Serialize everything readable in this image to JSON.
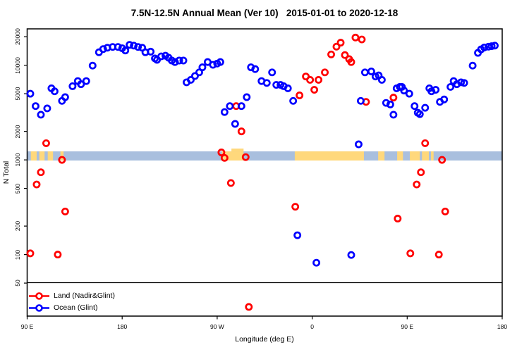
{
  "title": "7.5N-12.5N Annual Mean (Ver 10)   2015-01-01 to 2020-12-18",
  "legend": {
    "items": [
      {
        "label": "Land (Nadir&Glint)",
        "color": "#FF0000"
      },
      {
        "label": "Ocean (Glint)",
        "color": "#0000FF"
      }
    ]
  },
  "chart_data": {
    "type": "scatter",
    "title": "7.5N-12.5N Annual Mean (Ver 10)   2015-01-01 to 2020-12-18",
    "xlabel": "Longitude (deg E)",
    "ylabel": "N Total",
    "grid": false,
    "legend_position": "bottom-left",
    "x_range": [
      90,
      540
    ],
    "y_range": [
      22.4,
      24200
    ],
    "y_scale": "log",
    "x_ticks": [
      {
        "pos": 90,
        "label": "90 E"
      },
      {
        "pos": 180,
        "label": "180"
      },
      {
        "pos": 270,
        "label": "90 W"
      },
      {
        "pos": 360,
        "label": "0"
      },
      {
        "pos": 450,
        "label": "90 E"
      },
      {
        "pos": 540,
        "label": "180"
      }
    ],
    "y_ticks": [
      {
        "value": 20000,
        "label": "20000"
      },
      {
        "value": 10000,
        "label": "10000"
      },
      {
        "value": 5000,
        "label": "5000"
      },
      {
        "value": 2000,
        "label": "2000"
      },
      {
        "value": 1000,
        "label": "1000"
      },
      {
        "value": 500,
        "label": "500"
      },
      {
        "value": 200,
        "label": "200"
      },
      {
        "value": 100,
        "label": "100"
      },
      {
        "value": 50,
        "label": "50"
      }
    ],
    "map_band": {
      "value_top": 1230,
      "value_bottom": 985,
      "ocean_color": "#A9BFDE",
      "land_color": "#FFD87C",
      "land_segments": [
        [
          93.5,
          99
        ],
        [
          101.5,
          106.5
        ],
        [
          109.5,
          114.5
        ],
        [
          121.5,
          124.5
        ],
        [
          274.5,
          295
        ],
        [
          343.5,
          409
        ],
        [
          422.5,
          428.5
        ],
        [
          440.5,
          446
        ],
        [
          452.5,
          462
        ],
        [
          464,
          470.5
        ],
        [
          472.5,
          475
        ]
      ],
      "raised_segments": [
        [
          283.5,
          295
        ]
      ]
    },
    "series": [
      {
        "name": "Land (Nadir&Glint)",
        "color": "#FF0000",
        "marker": "open-circle",
        "points": [
          [
            93,
            103
          ],
          [
            99,
            550
          ],
          [
            103,
            740
          ],
          [
            108,
            1500
          ],
          [
            119,
            100
          ],
          [
            123,
            1000
          ],
          [
            126,
            285
          ],
          [
            274,
            1200
          ],
          [
            277,
            1050
          ],
          [
            283,
            570
          ],
          [
            288,
            3700
          ],
          [
            293,
            2000
          ],
          [
            297,
            1070
          ],
          [
            300,
            28
          ],
          [
            344,
            320
          ],
          [
            348,
            4800
          ],
          [
            354,
            7600
          ],
          [
            358,
            7000
          ],
          [
            362,
            5500
          ],
          [
            366,
            7000
          ],
          [
            372,
            8400
          ],
          [
            378,
            13000
          ],
          [
            383,
            15700
          ],
          [
            387,
            17300
          ],
          [
            391,
            12800
          ],
          [
            395,
            11600
          ],
          [
            397,
            10800
          ],
          [
            401,
            19600
          ],
          [
            407,
            18700
          ],
          [
            411,
            4100
          ],
          [
            437,
            4550
          ],
          [
            441,
            240
          ],
          [
            453,
            103
          ],
          [
            459,
            550
          ],
          [
            463,
            740
          ],
          [
            467,
            1500
          ],
          [
            480,
            100
          ],
          [
            483,
            1000
          ],
          [
            486,
            285
          ]
        ]
      },
      {
        "name": "Ocean (Glint)",
        "color": "#0000FF",
        "marker": "open-circle",
        "points": [
          [
            93,
            5000
          ],
          [
            98,
            3700
          ],
          [
            103,
            3000
          ],
          [
            109,
            3500
          ],
          [
            113,
            5700
          ],
          [
            116,
            5300
          ],
          [
            123,
            4200
          ],
          [
            126,
            4600
          ],
          [
            133,
            6000
          ],
          [
            138,
            6800
          ],
          [
            141,
            6300
          ],
          [
            146,
            6800
          ],
          [
            152,
            9900
          ],
          [
            158,
            13700
          ],
          [
            162,
            14800
          ],
          [
            166,
            15300
          ],
          [
            171,
            15600
          ],
          [
            176,
            15600
          ],
          [
            180,
            15100
          ],
          [
            183,
            14300
          ],
          [
            187,
            16400
          ],
          [
            191,
            16100
          ],
          [
            195,
            15600
          ],
          [
            199,
            15300
          ],
          [
            202,
            13700
          ],
          [
            207,
            13900
          ],
          [
            211,
            11800
          ],
          [
            213,
            11400
          ],
          [
            217,
            12400
          ],
          [
            221,
            12600
          ],
          [
            224,
            12000
          ],
          [
            227,
            11200
          ],
          [
            230,
            10800
          ],
          [
            234,
            11200
          ],
          [
            238,
            11200
          ],
          [
            241,
            6600
          ],
          [
            245,
            7000
          ],
          [
            249,
            7700
          ],
          [
            253,
            8400
          ],
          [
            256,
            9500
          ],
          [
            261,
            10800
          ],
          [
            266,
            10100
          ],
          [
            270,
            10400
          ],
          [
            273,
            10800
          ],
          [
            277,
            3200
          ],
          [
            282,
            3700
          ],
          [
            287,
            2400
          ],
          [
            293,
            3700
          ],
          [
            298,
            4600
          ],
          [
            302,
            9500
          ],
          [
            306,
            9100
          ],
          [
            312,
            6800
          ],
          [
            317,
            6500
          ],
          [
            322,
            8400
          ],
          [
            326,
            6200
          ],
          [
            330,
            6200
          ],
          [
            333,
            6000
          ],
          [
            337,
            5700
          ],
          [
            342,
            4200
          ],
          [
            346,
            160
          ],
          [
            364,
            82
          ],
          [
            397,
            99
          ],
          [
            404,
            1460
          ],
          [
            406,
            4200
          ],
          [
            410,
            8400
          ],
          [
            416,
            8600
          ],
          [
            420,
            7600
          ],
          [
            423,
            7800
          ],
          [
            426,
            7000
          ],
          [
            430,
            4000
          ],
          [
            434,
            3850
          ],
          [
            437,
            3000
          ],
          [
            440,
            5700
          ],
          [
            443,
            5900
          ],
          [
            445,
            5900
          ],
          [
            447,
            5400
          ],
          [
            452,
            5000
          ],
          [
            457,
            3700
          ],
          [
            460,
            3150
          ],
          [
            462,
            3040
          ],
          [
            467,
            3550
          ],
          [
            471,
            5700
          ],
          [
            473,
            5300
          ],
          [
            477,
            5500
          ],
          [
            481,
            4100
          ],
          [
            485,
            4350
          ],
          [
            491,
            5900
          ],
          [
            494,
            6800
          ],
          [
            497,
            6300
          ],
          [
            501,
            6600
          ],
          [
            504,
            6500
          ],
          [
            512,
            9900
          ],
          [
            517,
            13500
          ],
          [
            520,
            14700
          ],
          [
            523,
            15400
          ],
          [
            527,
            15700
          ],
          [
            530,
            15900
          ],
          [
            533,
            16100
          ]
        ]
      }
    ]
  }
}
